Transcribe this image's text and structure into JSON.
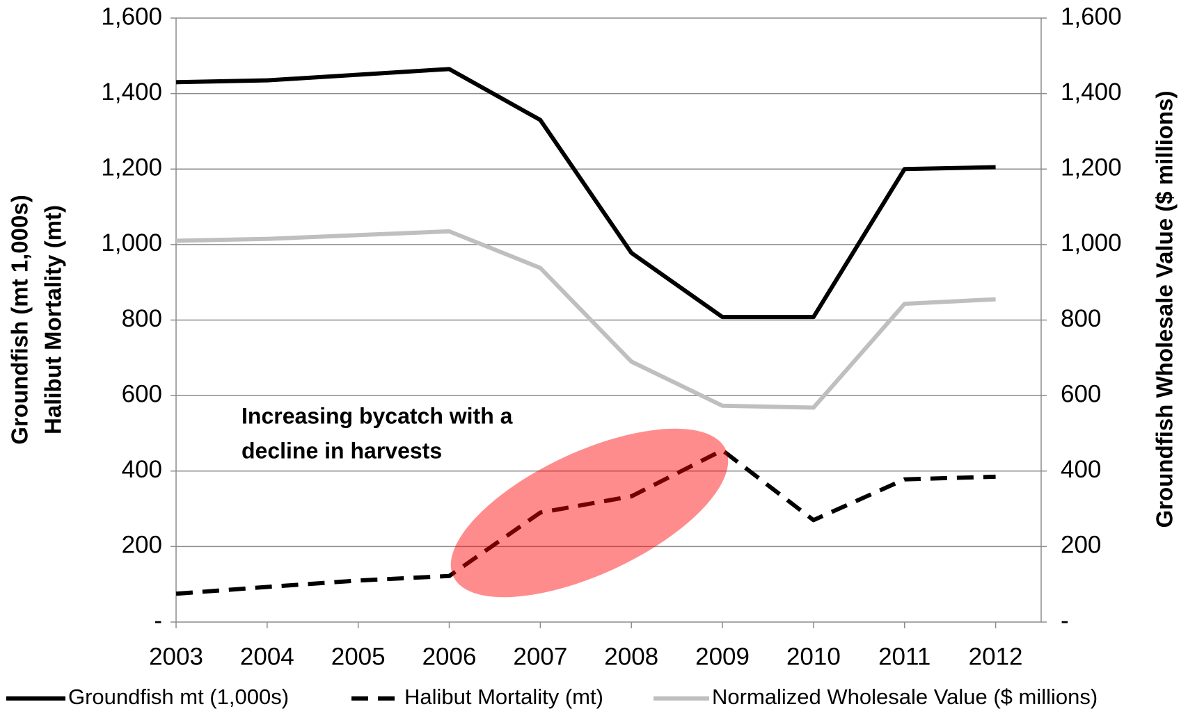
{
  "chart_data": {
    "type": "line",
    "y_label": [
      "Groundfish (mt 1,000s)",
      "Halibut Mortality (mt)"
    ],
    "y2_label": "Groundfish Wholesale Value ($ millions)",
    "annotation": [
      "Increasing bycatch with a",
      "decline in harvests"
    ],
    "categories": [
      "2003",
      "2004",
      "2005",
      "2006",
      "2007",
      "2008",
      "2009",
      "2010",
      "2011",
      "2012"
    ],
    "series": [
      {
        "name": "Groundfish mt (1,000s)",
        "color": "#000000",
        "dash": false,
        "values": [
          1430,
          1435,
          1450,
          1465,
          1330,
          978,
          808,
          808,
          1200,
          1205
        ]
      },
      {
        "name": "Halibut Mortality (mt)",
        "color": "#000000",
        "dash": true,
        "values": [
          75,
          93,
          110,
          122,
          290,
          333,
          455,
          270,
          378,
          385
        ]
      },
      {
        "name": "Normalized Wholesale Value ($ millions)",
        "color": "#bfbfbf",
        "dash": false,
        "axis": "y2",
        "values": [
          1010,
          1015,
          1025,
          1035,
          938,
          690,
          573,
          568,
          843,
          855
        ]
      }
    ],
    "ylim": [
      0,
      1600
    ],
    "yticks": [
      {
        "value": 0,
        "label": "-"
      },
      200,
      400,
      600,
      800,
      {
        "value": 1000,
        "label": "1,000"
      },
      {
        "value": 1200,
        "label": "1,200"
      },
      {
        "value": 1400,
        "label": "1,400"
      },
      {
        "value": 1600,
        "label": "1,600"
      }
    ],
    "y2lim": [
      0,
      1600
    ],
    "y2ticks": [
      {
        "value": 0,
        "label": "-"
      },
      200,
      400,
      600,
      800,
      {
        "value": 1000,
        "label": "1,000"
      },
      {
        "value": 1200,
        "label": "1,200"
      },
      {
        "value": 1400,
        "label": "1,400"
      },
      {
        "value": 1600,
        "label": "1,600"
      }
    ],
    "grid": true,
    "legend": "bottom"
  }
}
